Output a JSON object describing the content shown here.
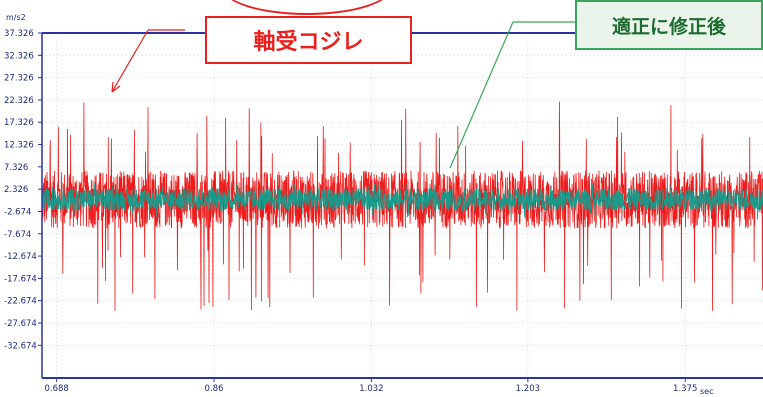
{
  "chart_data": {
    "type": "line",
    "ylabel_unit": "m/s2",
    "xlabel_unit": "sec",
    "xlim": [
      0.672,
      1.46
    ],
    "ylim": [
      -40.0,
      37.326
    ],
    "x_ticks": [
      "0.688",
      "0.86",
      "1.032",
      "1.203",
      "1.375"
    ],
    "x_tick_values": [
      0.688,
      0.86,
      1.032,
      1.203,
      1.375
    ],
    "y_ticks": [
      "37.326",
      "32.326",
      "27.326",
      "22.326",
      "17.326",
      "12.326",
      "7.326",
      "2.326",
      "-2.674",
      "-7.674",
      "-12.674",
      "-17.674",
      "-22.674",
      "-27.674",
      "-32.674"
    ],
    "y_tick_values": [
      37.326,
      32.326,
      27.326,
      22.326,
      17.326,
      12.326,
      7.326,
      2.326,
      -2.674,
      -7.674,
      -12.674,
      -17.674,
      -22.674,
      -27.674,
      -32.674
    ],
    "grid": true,
    "series": [
      {
        "name": "",
        "color": "#ee1c1c",
        "baseline": 0.0,
        "noise_amplitude": 6.5,
        "spike_max": [
          22.0,
          -25.0
        ]
      },
      {
        "name": "",
        "color": "#1a9a8a",
        "baseline": 0.0,
        "noise_amplitude": 2.5,
        "spike_max": [
          4.0,
          -4.0
        ]
      }
    ]
  },
  "annotations": {
    "before": {
      "label": "軸受コジレ",
      "color": "#e8201e"
    },
    "after": {
      "label": "適正に修正後",
      "color": "#3aa55a"
    }
  }
}
